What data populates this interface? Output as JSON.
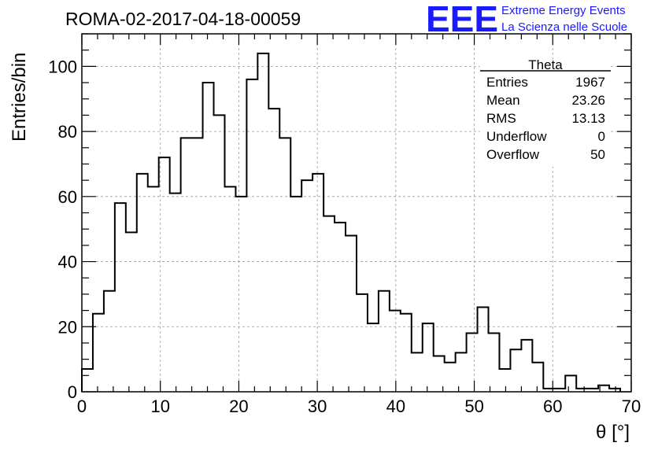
{
  "header": {
    "run_title": "ROMA-02-2017-04-18-00059",
    "logo_letters": "EEE",
    "logo_line1": "Extreme Energy Events",
    "logo_line2": "La Scienza nelle Scuole",
    "logo_color": "#1a1aff"
  },
  "stats_box": {
    "title": "Theta",
    "rows": [
      {
        "label": "Entries",
        "value": "1967"
      },
      {
        "label": "Mean",
        "value": "23.26"
      },
      {
        "label": "RMS",
        "value": "13.13"
      },
      {
        "label": "Underflow",
        "value": "0"
      },
      {
        "label": "Overflow",
        "value": "50"
      }
    ]
  },
  "chart_data": {
    "type": "histogram",
    "title": "ROMA-02-2017-04-18-00059",
    "xlabel": "θ [°]",
    "ylabel": "Entries/bin",
    "xlim": [
      0,
      70
    ],
    "ylim": [
      0,
      110
    ],
    "bin_width": 1.4,
    "x_ticks": [
      0,
      10,
      20,
      30,
      40,
      50,
      60,
      70
    ],
    "y_ticks": [
      0,
      20,
      40,
      60,
      80,
      100
    ],
    "grid": true,
    "line_color": "#000000",
    "bin_edges_start": 0,
    "values": [
      7,
      24,
      31,
      58,
      49,
      67,
      63,
      72,
      61,
      78,
      78,
      95,
      85,
      63,
      60,
      96,
      104,
      87,
      78,
      60,
      65,
      67,
      54,
      52,
      48,
      30,
      21,
      31,
      25,
      24,
      12,
      21,
      11,
      9,
      12,
      18,
      26,
      18,
      7,
      13,
      16,
      9,
      1,
      1,
      5,
      1,
      1,
      2,
      1
    ]
  }
}
